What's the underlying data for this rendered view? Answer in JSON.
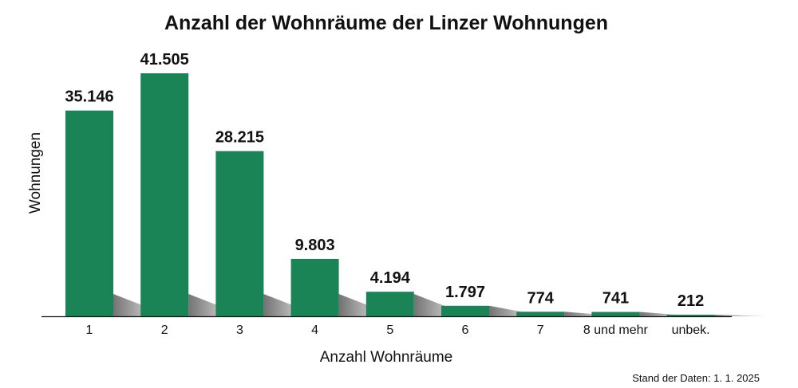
{
  "chart_data": {
    "type": "bar",
    "title": "Anzahl der Wohnräume der Linzer Wohnungen",
    "xlabel": "Anzahl Wohnräume",
    "ylabel": "Wohnungen",
    "categories": [
      "1",
      "2",
      "3",
      "4",
      "5",
      "6",
      "7",
      "8 und mehr",
      "unbek."
    ],
    "values": [
      35146,
      41505,
      28215,
      9803,
      4194,
      1797,
      774,
      741,
      212
    ],
    "value_labels": [
      "35.146",
      "41.505",
      "28.215",
      "9.803",
      "4.194",
      "1.797",
      "774",
      "741",
      "212"
    ],
    "ylim": [
      0,
      41505
    ],
    "grid": false,
    "legend": "none",
    "bar_color": "#1a8457",
    "axis_color": "#111111",
    "footnote": "Stand der Daten: 1. 1. 2025"
  }
}
